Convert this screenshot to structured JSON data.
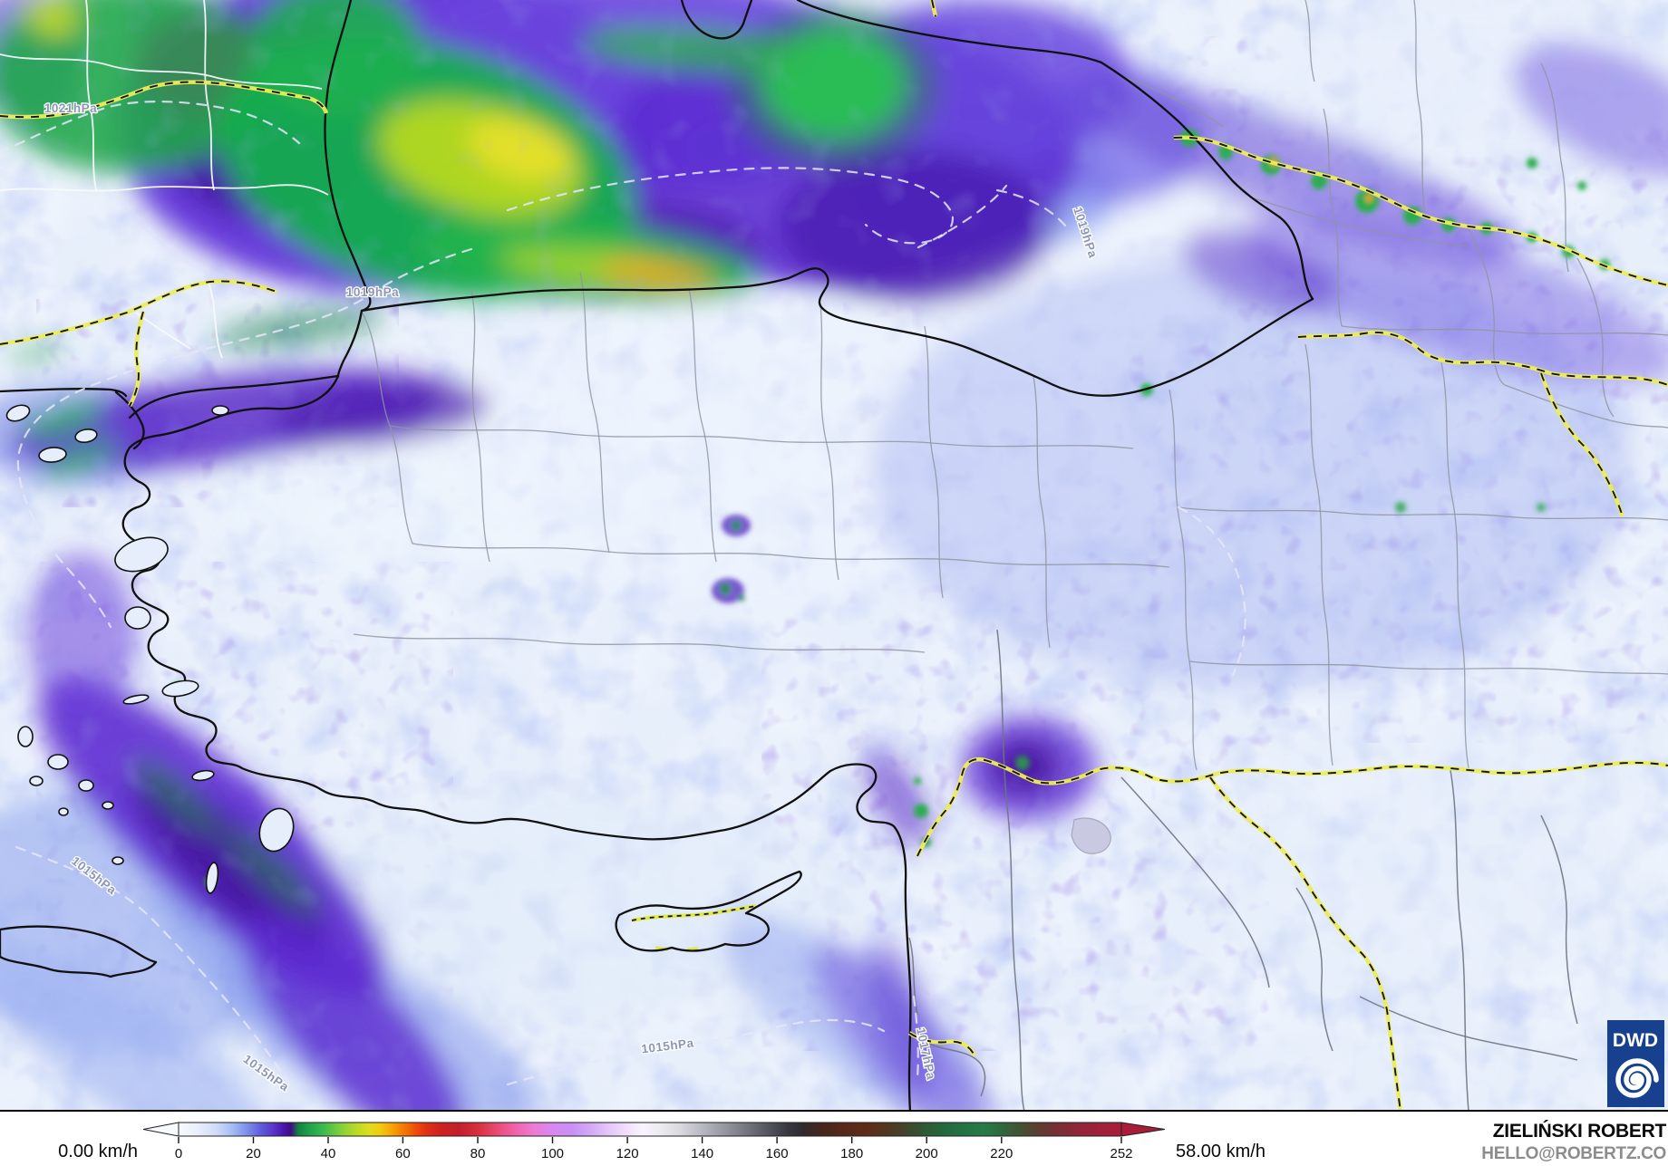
{
  "map": {
    "isobar_labels": [
      {
        "text": "1021hPa"
      },
      {
        "text": "1019hPa"
      },
      {
        "text": "1019hPa"
      },
      {
        "text": "1015hPa"
      },
      {
        "text": "1015hPa"
      },
      {
        "text": "1015hPa"
      },
      {
        "text": "1017hPa"
      }
    ],
    "logo": {
      "text": "DWD",
      "color": "#17418f"
    }
  },
  "legend": {
    "min_label": "0.00 km/h",
    "max_label": "58.00 km/h",
    "ticks": [
      "0",
      "20",
      "40",
      "60",
      "80",
      "100",
      "120",
      "140",
      "160",
      "180",
      "200",
      "220",
      "252"
    ],
    "scale_max": 252,
    "gradient_stops": [
      {
        "v": 0,
        "c": "#f7fafe"
      },
      {
        "v": 5,
        "c": "#e9f0fc"
      },
      {
        "v": 10,
        "c": "#cfdcf7"
      },
      {
        "v": 14,
        "c": "#a9c0f2"
      },
      {
        "v": 18,
        "c": "#7f93ea"
      },
      {
        "v": 22,
        "c": "#5f5cda"
      },
      {
        "v": 25,
        "c": "#5a39cb"
      },
      {
        "v": 28,
        "c": "#4b16ab"
      },
      {
        "v": 30,
        "c": "#3d0c86"
      },
      {
        "v": 32,
        "c": "#14813f"
      },
      {
        "v": 35,
        "c": "#1ea34a"
      },
      {
        "v": 39,
        "c": "#3fbb4e"
      },
      {
        "v": 43,
        "c": "#7ccf3c"
      },
      {
        "v": 47,
        "c": "#b4d928"
      },
      {
        "v": 51,
        "c": "#e0dc1e"
      },
      {
        "v": 54,
        "c": "#f2c90f"
      },
      {
        "v": 57,
        "c": "#f7a307"
      },
      {
        "v": 60,
        "c": "#f57b04"
      },
      {
        "v": 63,
        "c": "#ef5206"
      },
      {
        "v": 66,
        "c": "#e23214"
      },
      {
        "v": 70,
        "c": "#cf2120"
      },
      {
        "v": 75,
        "c": "#c41f2c"
      },
      {
        "v": 80,
        "c": "#d92f3d"
      },
      {
        "v": 85,
        "c": "#ea4a72"
      },
      {
        "v": 90,
        "c": "#f163ab"
      },
      {
        "v": 95,
        "c": "#ec7cd3"
      },
      {
        "v": 100,
        "c": "#d987f2"
      },
      {
        "v": 105,
        "c": "#c791f4"
      },
      {
        "v": 110,
        "c": "#d3a8f6"
      },
      {
        "v": 115,
        "c": "#e4c6fa"
      },
      {
        "v": 120,
        "c": "#f1e0fb"
      },
      {
        "v": 124,
        "c": "#f8f4fd"
      },
      {
        "v": 128,
        "c": "#efeef3"
      },
      {
        "v": 134,
        "c": "#d9d9df"
      },
      {
        "v": 140,
        "c": "#b7b7bf"
      },
      {
        "v": 146,
        "c": "#96969e"
      },
      {
        "v": 152,
        "c": "#74747c"
      },
      {
        "v": 158,
        "c": "#52525a"
      },
      {
        "v": 163,
        "c": "#37373f"
      },
      {
        "v": 167,
        "c": "#302b2d"
      },
      {
        "v": 172,
        "c": "#47251e"
      },
      {
        "v": 178,
        "c": "#58291a"
      },
      {
        "v": 184,
        "c": "#5d2d17"
      },
      {
        "v": 189,
        "c": "#543620"
      },
      {
        "v": 194,
        "c": "#43432b"
      },
      {
        "v": 199,
        "c": "#2f5734"
      },
      {
        "v": 204,
        "c": "#25673d"
      },
      {
        "v": 210,
        "c": "#237345"
      },
      {
        "v": 215,
        "c": "#267b49"
      },
      {
        "v": 219,
        "c": "#2c6c41"
      },
      {
        "v": 224,
        "c": "#405535"
      },
      {
        "v": 229,
        "c": "#58402f"
      },
      {
        "v": 234,
        "c": "#733034"
      },
      {
        "v": 240,
        "c": "#8e2738"
      },
      {
        "v": 246,
        "c": "#a02139"
      },
      {
        "v": 252,
        "c": "#a91d38"
      }
    ]
  },
  "attribution": {
    "line1": "ZIELIŃSKI ROBERT",
    "line2": "HELLO@ROBERTZ.CO"
  }
}
